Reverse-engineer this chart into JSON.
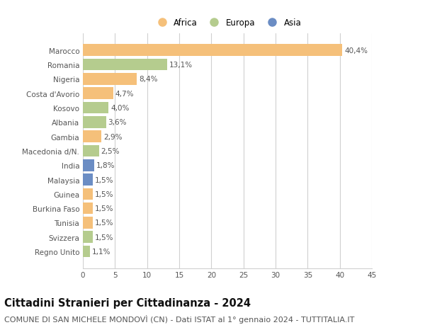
{
  "categories": [
    "Marocco",
    "Romania",
    "Nigeria",
    "Costa d'Avorio",
    "Kosovo",
    "Albania",
    "Gambia",
    "Macedonia d/N.",
    "India",
    "Malaysia",
    "Guinea",
    "Burkina Faso",
    "Tunisia",
    "Svizzera",
    "Regno Unito"
  ],
  "values": [
    40.4,
    13.1,
    8.4,
    4.7,
    4.0,
    3.6,
    2.9,
    2.5,
    1.8,
    1.5,
    1.5,
    1.5,
    1.5,
    1.5,
    1.1
  ],
  "labels": [
    "40,4%",
    "13,1%",
    "8,4%",
    "4,7%",
    "4,0%",
    "3,6%",
    "2,9%",
    "2,5%",
    "1,8%",
    "1,5%",
    "1,5%",
    "1,5%",
    "1,5%",
    "1,5%",
    "1,1%"
  ],
  "continents": [
    "Africa",
    "Europa",
    "Africa",
    "Africa",
    "Europa",
    "Europa",
    "Africa",
    "Europa",
    "Asia",
    "Asia",
    "Africa",
    "Africa",
    "Africa",
    "Europa",
    "Europa"
  ],
  "colors": {
    "Africa": "#F5C07A",
    "Europa": "#B5CC8E",
    "Asia": "#6B8DC4"
  },
  "legend_labels": [
    "Africa",
    "Europa",
    "Asia"
  ],
  "title": "Cittadini Stranieri per Cittadinanza - 2024",
  "subtitle": "COMUNE DI SAN MICHELE MONDOVÌ (CN) - Dati ISTAT al 1° gennaio 2024 - TUTTITALIA.IT",
  "xlim": [
    0,
    45
  ],
  "xticks": [
    0,
    5,
    10,
    15,
    20,
    25,
    30,
    35,
    40,
    45
  ],
  "background_color": "#ffffff",
  "grid_color": "#d0d0d0",
  "label_fontsize": 7.5,
  "tick_fontsize": 7.5,
  "legend_fontsize": 8.5,
  "title_fontsize": 10.5,
  "subtitle_fontsize": 8.0
}
